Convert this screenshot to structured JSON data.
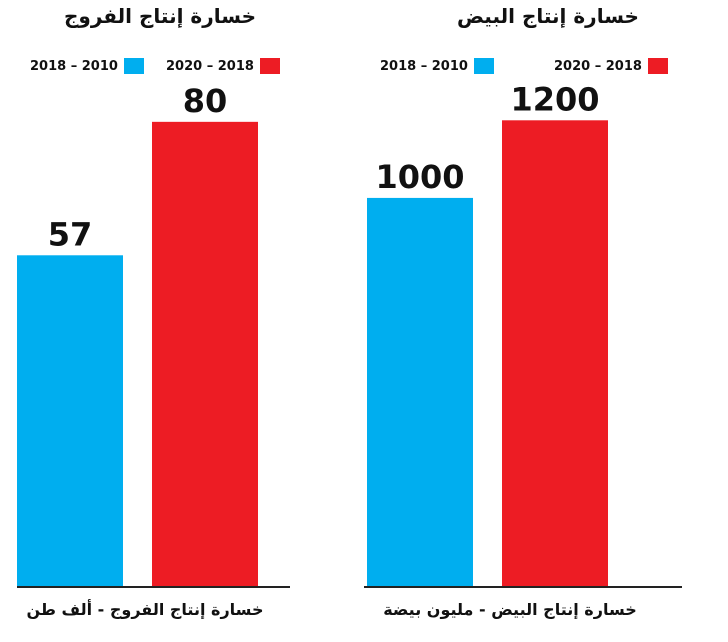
{
  "colors": {
    "blue": "#00AEEF",
    "red": "#ED1C24"
  },
  "chart_data": [
    {
      "type": "bar",
      "title": "خسارة إنتاج الفروج",
      "xlabel": "خسارة إنتاج الفروج - ألف طن",
      "categories": [
        "2010 – 2018",
        "2018 – 2020"
      ],
      "values": [
        57,
        80
      ],
      "colors": [
        "#00AEEF",
        "#ED1C24"
      ],
      "legend": [
        {
          "label": "2018 – 2010",
          "color": "#00AEEF"
        },
        {
          "label": "2020 – 2018",
          "color": "#ED1C24"
        }
      ],
      "ylim": [
        0,
        101
      ],
      "grid": false,
      "legend_position": "top"
    },
    {
      "type": "bar",
      "title": "خسارة إنتاج البيض",
      "xlabel": "خسارة إنتاج البيض - مليون بيضة",
      "categories": [
        "2010 – 2018",
        "2018 – 2020"
      ],
      "values": [
        1000,
        1200
      ],
      "colors": [
        "#00AEEF",
        "#ED1C24"
      ],
      "legend": [
        {
          "label": "2018 – 2010",
          "color": "#00AEEF"
        },
        {
          "label": "2020 – 2018",
          "color": "#ED1C24"
        }
      ],
      "ylim": [
        0,
        1510
      ],
      "grid": false,
      "legend_position": "top"
    }
  ]
}
